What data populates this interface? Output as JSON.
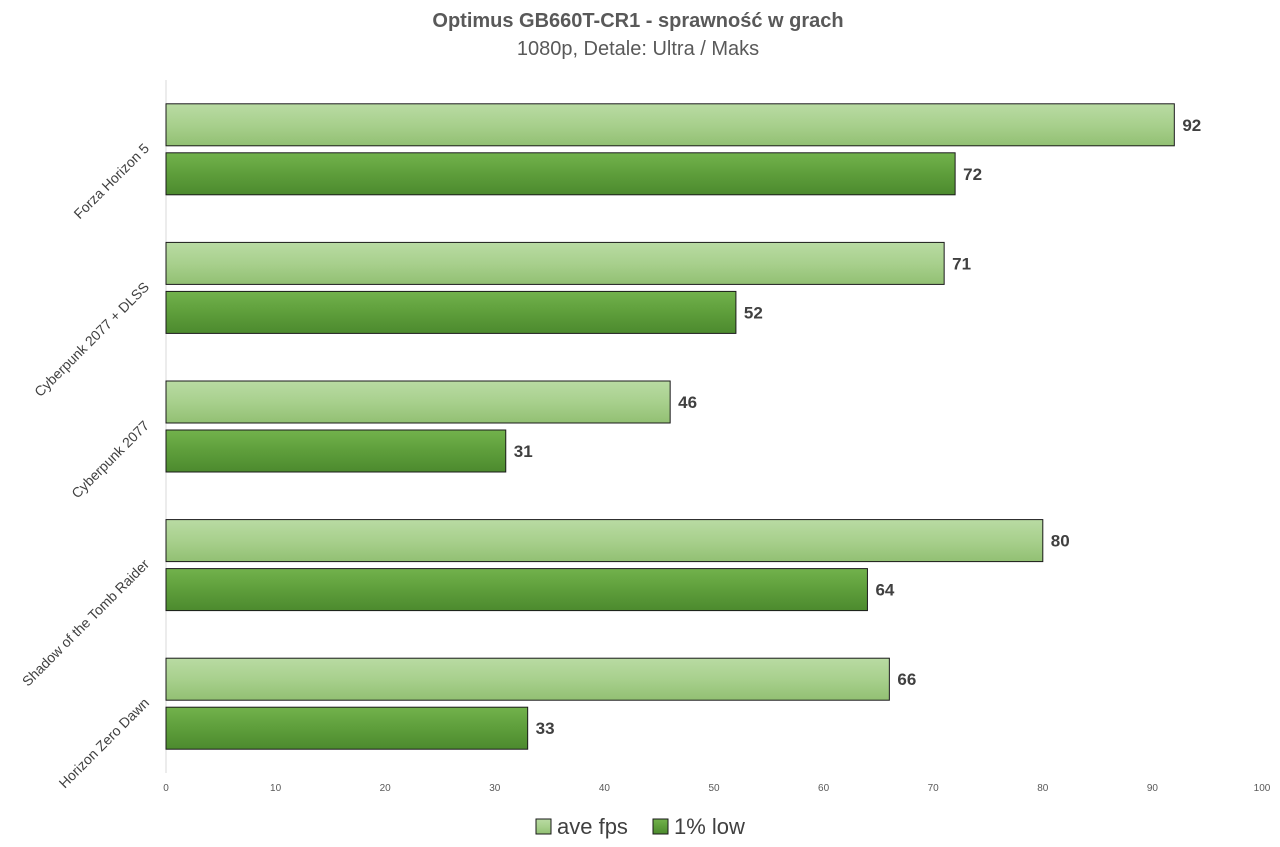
{
  "chart_data": {
    "type": "bar",
    "orientation": "horizontal",
    "title": "Optimus GB660T-CR1  - sprawność w grach",
    "subtitle": "1080p, Detale: Ultra / Maks",
    "categories": [
      "Forza Horizon 5",
      "Cyberpunk 2077 + DLSS",
      "Cyberpunk 2077",
      "Shadow of the Tomb Raider",
      "Horizon Zero Dawn"
    ],
    "series": [
      {
        "name": "ave fps",
        "values": [
          92,
          71,
          46,
          80,
          66
        ],
        "color": "#a8d08d"
      },
      {
        "name": "1% low",
        "values": [
          72,
          52,
          31,
          64,
          33
        ],
        "color": "#5e9e3b"
      }
    ],
    "xlim": [
      0,
      100
    ],
    "xticks": [
      "0",
      "10",
      "20",
      "30",
      "40",
      "50",
      "60",
      "70",
      "80",
      "90",
      "100"
    ],
    "xlabel": "",
    "ylabel": "",
    "grid": false,
    "data_labels": true,
    "legend_position": "bottom"
  }
}
